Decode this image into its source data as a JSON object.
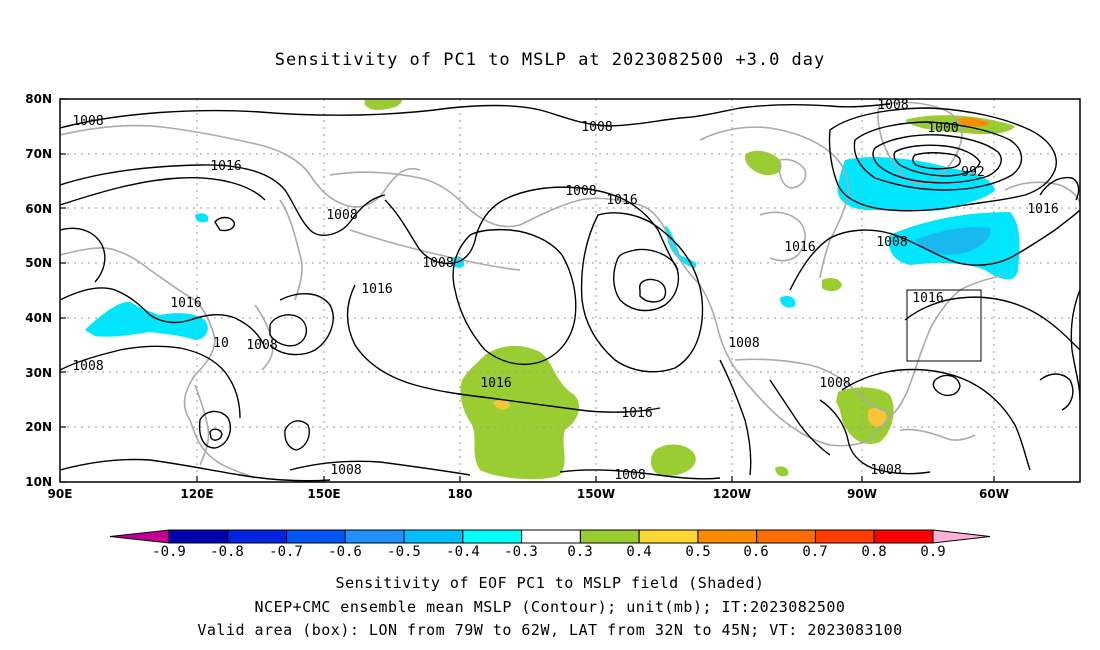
{
  "title": "Sensitivity of PC1 to MSLP at 2023082500 +3.0 day",
  "map": {
    "lat_labels": [
      "80N",
      "70N",
      "60N",
      "50N",
      "40N",
      "30N",
      "20N",
      "10N"
    ],
    "lon_labels": [
      "90E",
      "120E",
      "150E",
      "180",
      "150W",
      "120W",
      "90W",
      "60W"
    ],
    "valid_box": {
      "lon_west": -79,
      "lon_east": -62,
      "lat_south": 32,
      "lat_north": 45
    },
    "contour_labels": [
      "1008",
      "1016",
      "1016",
      "1008",
      "1008",
      "1016",
      "1008",
      "1008",
      "1016",
      "1008",
      "1016",
      "1008",
      "1000",
      "992",
      "1016",
      "1016",
      "1008",
      "1016",
      "1008",
      "1008",
      "10",
      "1008",
      "1008",
      "1016",
      "1016",
      "1008",
      "1008",
      "1008",
      "1008"
    ],
    "colors": {
      "green": "#9acd32",
      "yellow": "#f7c53a",
      "orange": "#fb8c00",
      "cyan": "#00e6ff",
      "lightblue": "#00bfff",
      "coast": "#aaaaaa"
    }
  },
  "colorbar": {
    "labels": [
      "-0.9",
      "-0.8",
      "-0.7",
      "-0.6",
      "-0.5",
      "-0.4",
      "-0.3",
      "0.3",
      "0.4",
      "0.5",
      "0.6",
      "0.7",
      "0.8",
      "0.9"
    ],
    "colors": [
      "#c0008f",
      "#0000b0",
      "#0024e0",
      "#0055f5",
      "#1e90ff",
      "#00bfff",
      "#00ffff",
      "#ffffff",
      "#9acd32",
      "#fdd835",
      "#fb8c00",
      "#ff6d00",
      "#ff3d00",
      "#ff0000",
      "#ffb0d8"
    ]
  },
  "captions": {
    "line1": "Sensitivity of EOF PC1 to MSLP field (Shaded)",
    "line2": "NCEP+CMC ensemble mean MSLP (Contour); unit(mb); IT:2023082500",
    "line3": "Valid area (box): LON from 79W to 62W, LAT from 32N to 45N; VT: 2023083100"
  }
}
